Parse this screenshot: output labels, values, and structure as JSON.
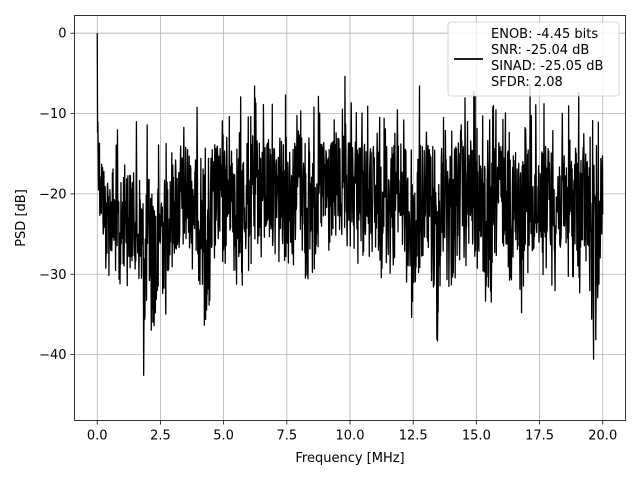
{
  "chart_data": {
    "type": "line",
    "title": "",
    "xlabel": "Frequency [MHz]",
    "ylabel": "PSD [dB]",
    "xlim": [
      -0.9,
      20.9
    ],
    "ylim": [
      -48.2,
      2.2
    ],
    "grid": true,
    "legend_position": "top-right",
    "xticks": [
      0.0,
      2.5,
      5.0,
      7.5,
      10.0,
      12.5,
      15.0,
      17.5,
      20.0
    ],
    "xtick_labels": [
      "0.0",
      "2.5",
      "5.0",
      "7.5",
      "10.0",
      "12.5",
      "15.0",
      "17.5",
      "20.0"
    ],
    "yticks": [
      0,
      -10,
      -20,
      -30,
      -40
    ],
    "ytick_labels": [
      "0",
      "−10",
      "−20",
      "−30",
      "−40"
    ],
    "legend": [
      "ENOB: -4.45 bits",
      "SNR: -25.04 dB",
      "SINAD: -25.05 dB",
      "SFDR: 2.08"
    ],
    "series": [
      {
        "color": "#000000",
        "x": [
          0.0,
          0.02,
          0.05,
          0.1,
          0.2,
          0.35,
          0.5,
          0.7,
          0.9,
          1.1,
          1.3,
          1.5,
          1.7,
          1.85,
          2.0,
          2.2,
          2.35,
          2.5,
          2.7,
          2.9,
          3.2,
          3.5,
          3.8,
          4.1,
          4.4,
          4.7,
          5.0,
          5.3,
          5.6,
          5.9,
          6.2,
          6.5,
          6.8,
          7.1,
          7.4,
          7.7,
          8.0,
          8.3,
          8.6,
          8.9,
          9.2,
          9.5,
          9.8,
          10.1,
          10.4,
          10.7,
          11.0,
          11.3,
          11.6,
          11.9,
          12.2,
          12.5,
          12.8,
          13.1,
          13.4,
          13.7,
          14.0,
          14.3,
          14.6,
          14.9,
          15.2,
          15.5,
          15.8,
          16.1,
          16.4,
          16.7,
          17.0,
          17.3,
          17.6,
          17.9,
          18.2,
          18.5,
          18.8,
          19.1,
          19.4,
          19.7,
          20.0
        ],
        "y_max": [
          0.0,
          -1.0,
          -5.5,
          -7.0,
          -10.5,
          -11.5,
          -11.0,
          -10.5,
          -9.5,
          -8.8,
          -9.0,
          -8.8,
          -9.5,
          -9.0,
          -8.5,
          -8.8,
          -8.5,
          -9.0,
          -9.0,
          -8.5,
          -8.0,
          -6.5,
          -8.0,
          -7.0,
          -7.5,
          -5.5,
          -5.5,
          -6.5,
          -5.0,
          -6.5,
          -4.5,
          -4.5,
          -5.5,
          -5.0,
          -4.8,
          -5.5,
          -4.5,
          -5.0,
          -5.0,
          -5.2,
          -4.8,
          -5.5,
          -4.5,
          -5.0,
          -4.5,
          -5.8,
          -5.0,
          -4.8,
          -5.5,
          -5.0,
          -4.5,
          -6.5,
          -5.0,
          -4.5,
          -5.5,
          -5.0,
          -4.2,
          -5.0,
          -5.8,
          -5.5,
          -5.0,
          -5.5,
          -5.0,
          -5.5,
          -4.8,
          -7.0,
          -5.0,
          -5.5,
          -4.5,
          -5.5,
          -5.0,
          -7.5,
          -6.5,
          -5.5,
          -7.5,
          -6.5,
          -9.0
        ],
        "y_min": [
          -16.0,
          -20.0,
          -22.0,
          -26.5,
          -26.0,
          -31.5,
          -30.5,
          -33.0,
          -37.0,
          -30.0,
          -33.5,
          -33.0,
          -36.0,
          -44.5,
          -36.5,
          -41.0,
          -43.0,
          -33.0,
          -36.0,
          -31.5,
          -31.0,
          -30.5,
          -30.0,
          -32.0,
          -42.0,
          -30.0,
          -31.5,
          -28.5,
          -34.0,
          -31.0,
          -30.0,
          -30.5,
          -28.0,
          -31.0,
          -28.5,
          -30.5,
          -25.0,
          -35.0,
          -30.0,
          -29.0,
          -30.5,
          -27.0,
          -32.0,
          -27.5,
          -30.0,
          -28.5,
          -34.5,
          -29.5,
          -31.0,
          -28.5,
          -33.0,
          -39.5,
          -30.0,
          -31.5,
          -42.0,
          -30.0,
          -34.0,
          -29.5,
          -30.5,
          -31.0,
          -32.0,
          -40.5,
          -29.0,
          -30.5,
          -31.5,
          -37.5,
          -29.5,
          -32.0,
          -30.0,
          -31.5,
          -32.5,
          -30.0,
          -31.5,
          -33.0,
          -31.0,
          -46.0,
          -25.0
        ]
      }
    ]
  }
}
